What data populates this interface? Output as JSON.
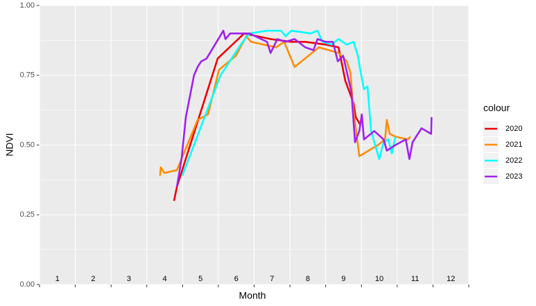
{
  "chart_data": {
    "type": "line",
    "x_label": "Month",
    "y_label": "NDVI",
    "xlim": [
      1,
      13
    ],
    "xticks": [
      1,
      2,
      3,
      4,
      5,
      6,
      7,
      8,
      9,
      10,
      11,
      12,
      13
    ],
    "ylim": [
      0,
      1
    ],
    "yticks": [
      {
        "value": 0,
        "label": "0.00"
      },
      {
        "value": 0.25,
        "label": "0.25"
      },
      {
        "value": 0.5,
        "label": "0.50"
      },
      {
        "value": 0.75,
        "label": "0.75"
      },
      {
        "value": 1,
        "label": "1.00"
      }
    ],
    "grid": true,
    "month_labels": {
      "x": [
        1.5,
        2.5,
        3.5,
        4.5,
        5.5,
        6.5,
        7.5,
        8.5,
        9.5,
        10.5,
        11.5,
        12.5
      ],
      "y": 0.015,
      "labels": [
        "1",
        "2",
        "3",
        "4",
        "5",
        "6",
        "7",
        "8",
        "9",
        "10",
        "11",
        "12"
      ]
    },
    "legend_title": "colour",
    "legend_position": "right",
    "series": [
      {
        "name": "2020",
        "color": "#ee0000",
        "x": [
          4.76,
          4.84,
          5.98,
          6.72,
          7.46,
          8.04,
          8.43,
          9.0,
          9.36,
          9.55,
          9.78,
          9.84,
          9.98
        ],
        "values": [
          0.3,
          0.35,
          0.81,
          0.9,
          0.88,
          0.87,
          0.87,
          0.86,
          0.85,
          0.73,
          0.65,
          0.6,
          0.57
        ]
      },
      {
        "name": "2021",
        "color": "#ff8c00",
        "x": [
          4.37,
          4.39,
          4.49,
          4.84,
          5.42,
          5.71,
          6.02,
          6.49,
          6.78,
          6.91,
          7.61,
          7.84,
          8.13,
          8.81,
          9.36,
          9.59,
          9.69,
          9.78,
          9.94,
          10.46,
          10.66,
          10.71,
          10.79,
          10.95,
          11.29,
          11.37
        ],
        "values": [
          0.39,
          0.42,
          0.4,
          0.41,
          0.59,
          0.61,
          0.77,
          0.82,
          0.89,
          0.87,
          0.85,
          0.87,
          0.78,
          0.85,
          0.83,
          0.8,
          0.76,
          0.62,
          0.46,
          0.5,
          0.52,
          0.59,
          0.54,
          0.53,
          0.52,
          0.53
        ]
      },
      {
        "name": "2022",
        "color": "#00ffff",
        "x": [
          4.99,
          5.32,
          6.06,
          6.68,
          6.87,
          7.36,
          7.59,
          7.75,
          7.88,
          8.04,
          8.58,
          8.77,
          8.91,
          9.16,
          9.36,
          9.59,
          9.78,
          9.9,
          9.98,
          10.07,
          10.17,
          10.27,
          10.36,
          10.5,
          10.62,
          10.75,
          10.85,
          10.95
        ],
        "values": [
          0.39,
          0.5,
          0.75,
          0.87,
          0.9,
          0.91,
          0.91,
          0.91,
          0.89,
          0.91,
          0.9,
          0.91,
          0.87,
          0.86,
          0.88,
          0.86,
          0.87,
          0.82,
          0.76,
          0.7,
          0.71,
          0.55,
          0.51,
          0.45,
          0.51,
          0.52,
          0.47,
          0.53
        ]
      },
      {
        "name": "2023",
        "color": "#a020f0",
        "x": [
          4.84,
          4.97,
          5.09,
          5.32,
          5.42,
          5.52,
          5.67,
          6.14,
          6.2,
          6.33,
          6.87,
          7.36,
          7.46,
          7.65,
          7.88,
          8.13,
          8.43,
          8.66,
          8.77,
          9.0,
          9.2,
          9.34,
          9.49,
          9.72,
          9.82,
          9.94,
          10.01,
          10.07,
          10.36,
          10.62,
          10.71,
          10.95,
          11.24,
          11.34,
          11.43,
          11.68,
          11.95,
          11.96
        ],
        "values": [
          0.35,
          0.45,
          0.6,
          0.75,
          0.78,
          0.8,
          0.81,
          0.91,
          0.88,
          0.9,
          0.9,
          0.87,
          0.83,
          0.88,
          0.87,
          0.88,
          0.85,
          0.84,
          0.88,
          0.87,
          0.87,
          0.8,
          0.82,
          0.69,
          0.51,
          0.55,
          0.61,
          0.52,
          0.55,
          0.52,
          0.48,
          0.5,
          0.52,
          0.45,
          0.51,
          0.56,
          0.54,
          0.6
        ]
      }
    ]
  }
}
